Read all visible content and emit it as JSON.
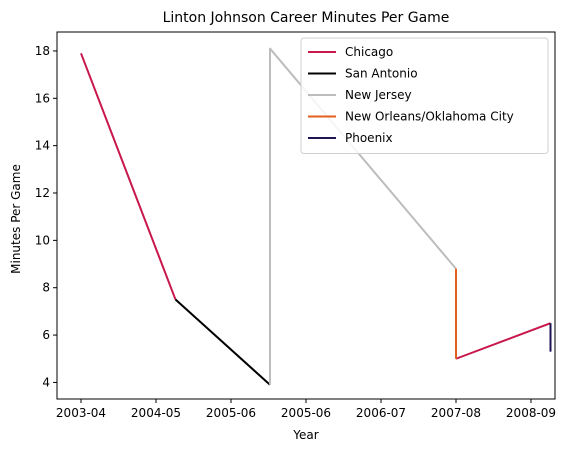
{
  "chart_data": {
    "type": "line",
    "title": "Linton Johnson Career Minutes Per Game",
    "xlabel": "Year",
    "ylabel": "Minutes Per Game",
    "x_ticks": [
      {
        "pos": 0,
        "label": "2003-04"
      },
      {
        "pos": 1,
        "label": "2004-05"
      },
      {
        "pos": 2,
        "label": "2005-06"
      },
      {
        "pos": 3,
        "label": "2005-06"
      },
      {
        "pos": 4,
        "label": "2006-07"
      },
      {
        "pos": 5,
        "label": "2007-08"
      },
      {
        "pos": 6,
        "label": "2008-09"
      }
    ],
    "xlim": [
      -0.32,
      6.32
    ],
    "ylim": [
      3.3,
      18.8
    ],
    "y_ticks": [
      4,
      6,
      8,
      10,
      12,
      14,
      16,
      18
    ],
    "legend_position": "upper right",
    "series": [
      {
        "name": "Chicago",
        "color": "#c8174a",
        "segments": [
          [
            [
              0,
              17.9
            ],
            [
              1.26,
              7.5
            ]
          ],
          [
            [
              5,
              5.0
            ],
            [
              6.26,
              6.5
            ]
          ]
        ]
      },
      {
        "name": "San Antonio",
        "color": "#000000",
        "segments": [
          [
            [
              1.26,
              7.5
            ],
            [
              2.52,
              3.9
            ]
          ]
        ]
      },
      {
        "name": "New Jersey",
        "color": "#bdbdbd",
        "segments": [
          [
            [
              2.52,
              3.9
            ],
            [
              2.52,
              18.1
            ],
            [
              5,
              8.8
            ]
          ]
        ]
      },
      {
        "name": "New Orleans/Oklahoma City",
        "color": "#e0601e",
        "segments": [
          [
            [
              5,
              8.8
            ],
            [
              5,
              5.0
            ]
          ]
        ]
      },
      {
        "name": "Phoenix",
        "color": "#1e1454",
        "segments": [
          [
            [
              6.26,
              6.5
            ],
            [
              6.26,
              5.3
            ]
          ]
        ]
      }
    ]
  }
}
